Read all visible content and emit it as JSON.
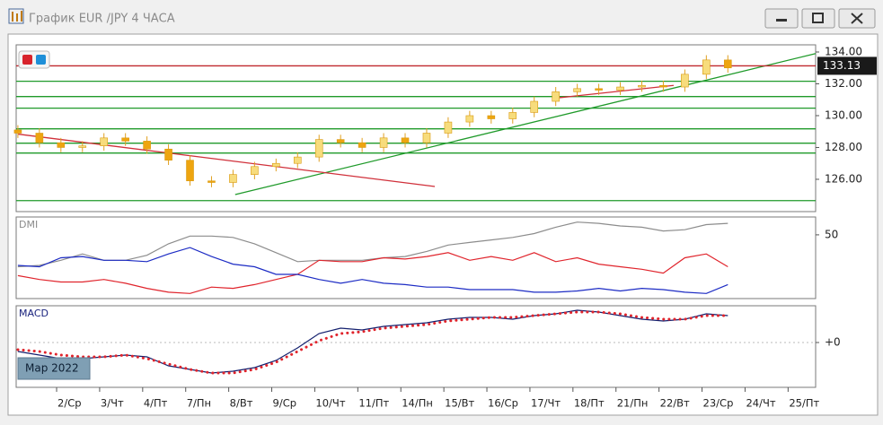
{
  "window": {
    "title": "График EUR /JPY  4 ЧАСА"
  },
  "chart_data": [
    {
      "type": "candlestick",
      "x": [
        -0.9,
        -0.4,
        0.1,
        0.6,
        1.1,
        1.6,
        2.1,
        2.6,
        3.1,
        3.6,
        4.1,
        4.6,
        5.1,
        5.6,
        6.1,
        6.6,
        7.1,
        7.6,
        8.1,
        8.6,
        9.1,
        9.6,
        10.1,
        10.6,
        11.1,
        11.6,
        12.1,
        12.6,
        13.1,
        13.6,
        14.1,
        14.6,
        15.1,
        15.6
      ],
      "open": [
        129.1,
        128.9,
        128.3,
        128.0,
        128.1,
        128.6,
        128.4,
        127.9,
        127.2,
        125.9,
        125.8,
        126.3,
        126.8,
        127.0,
        127.4,
        128.5,
        128.3,
        128.0,
        128.6,
        128.3,
        128.9,
        129.6,
        130.0,
        129.8,
        130.2,
        130.9,
        131.5,
        131.7,
        131.6,
        131.8,
        131.9,
        131.8,
        132.6,
        133.5
      ],
      "high": [
        129.4,
        129.2,
        128.6,
        128.4,
        128.9,
        128.9,
        128.7,
        128.2,
        127.5,
        126.2,
        126.6,
        127.1,
        127.3,
        127.7,
        128.8,
        128.8,
        128.6,
        128.9,
        128.9,
        129.2,
        129.9,
        130.3,
        130.3,
        130.5,
        131.2,
        131.8,
        132.0,
        132.0,
        132.1,
        132.2,
        132.2,
        132.9,
        133.8,
        133.8
      ],
      "low": [
        128.6,
        128.0,
        127.7,
        127.7,
        127.8,
        128.1,
        127.6,
        126.9,
        125.6,
        125.5,
        125.5,
        126.0,
        126.5,
        126.7,
        127.1,
        128.0,
        127.7,
        127.7,
        128.0,
        128.0,
        128.6,
        129.3,
        129.5,
        129.5,
        129.9,
        130.6,
        131.2,
        131.3,
        131.3,
        131.5,
        131.5,
        131.5,
        132.3,
        132.7
      ],
      "close": [
        128.9,
        128.3,
        128.0,
        128.1,
        128.6,
        128.4,
        127.9,
        127.2,
        125.9,
        125.8,
        126.3,
        126.8,
        127.0,
        127.4,
        128.5,
        128.3,
        128.0,
        128.6,
        128.3,
        128.9,
        129.6,
        130.0,
        129.8,
        130.2,
        130.9,
        131.5,
        131.7,
        131.6,
        131.8,
        131.9,
        131.8,
        132.6,
        133.5,
        133.0
      ],
      "up_color": "#f7dc7c",
      "down_color": "#eea510",
      "xlim": [
        -0.94,
        17.64
      ],
      "ylim": [
        123.97,
        134.45
      ],
      "yticks": [
        {
          "value": 126,
          "label": "126.00"
        },
        {
          "value": 128,
          "label": "128.00"
        },
        {
          "value": 130,
          "label": "130.00"
        },
        {
          "value": 132,
          "label": "132.00"
        },
        {
          "value": 134,
          "label": "134.00"
        }
      ],
      "current_price": {
        "value": 133.13,
        "label": "133.13"
      },
      "price_line_color": "#c0282e",
      "levels": [
        132.16,
        131.2,
        130.47,
        129.17,
        128.27,
        127.65,
        124.66
      ],
      "level_color": "#1f9a2a",
      "trendlines": [
        {
          "color": "#1f9a2a",
          "x": [
            4.15,
            17.64
          ],
          "y": [
            125.04,
            133.9
          ]
        },
        {
          "color": "#d0303a",
          "x": [
            -0.9,
            8.79
          ],
          "y": [
            128.84,
            125.55
          ]
        },
        {
          "color": "#d0303a",
          "x": [
            11.59,
            14.34
          ],
          "y": [
            131.1,
            131.9
          ]
        }
      ]
    },
    {
      "type": "line",
      "title": "DMI",
      "x": [
        -0.9,
        -0.4,
        0.1,
        0.6,
        1.1,
        1.6,
        2.1,
        2.6,
        3.1,
        3.6,
        4.1,
        4.6,
        5.1,
        5.6,
        6.1,
        6.6,
        7.1,
        7.6,
        8.1,
        8.6,
        9.1,
        9.6,
        10.1,
        10.6,
        11.1,
        11.6,
        12.1,
        12.6,
        13.1,
        13.6,
        14.1,
        14.6,
        15.1,
        15.6
      ],
      "xlim": [
        -0.94,
        17.64
      ],
      "ylim": [
        0,
        64
      ],
      "yticks": [
        50
      ],
      "series": [
        {
          "color": "#8c8c8c",
          "values": [
            25,
            26,
            30,
            35,
            30,
            30,
            34,
            43,
            49,
            49,
            48,
            43,
            36,
            29,
            30,
            30,
            30,
            32,
            33,
            37,
            42,
            44,
            46,
            48,
            51,
            56,
            60,
            59,
            57,
            56,
            53,
            54,
            58,
            59
          ]
        },
        {
          "color": "#e0242c",
          "values": [
            18,
            15,
            13,
            13,
            15,
            12,
            8,
            5,
            4,
            9,
            8,
            11,
            15,
            19,
            30,
            29,
            29,
            32,
            31,
            33,
            36,
            30,
            33,
            30,
            36,
            29,
            32,
            27,
            25,
            23,
            20,
            32,
            35,
            25
          ]
        },
        {
          "color": "#1c2bc4",
          "values": [
            26,
            25,
            32,
            33,
            30,
            30,
            29,
            35,
            40,
            33,
            27,
            25,
            19,
            19,
            15,
            12,
            15,
            12,
            11,
            9,
            9,
            7,
            7,
            7,
            5,
            5,
            6,
            8,
            6,
            8,
            7,
            5,
            4,
            11
          ]
        }
      ]
    },
    {
      "type": "line",
      "title": "MACD",
      "x": [
        -0.9,
        -0.4,
        0.1,
        0.6,
        1.1,
        1.6,
        2.1,
        2.6,
        3.1,
        3.6,
        4.1,
        4.6,
        5.1,
        5.6,
        6.1,
        6.6,
        7.1,
        7.6,
        8.1,
        8.6,
        9.1,
        9.6,
        10.1,
        10.6,
        11.1,
        11.6,
        12.1,
        12.6,
        13.1,
        13.6,
        14.1,
        14.6,
        15.1,
        15.6
      ],
      "xlim": [
        -0.94,
        17.64
      ],
      "ylim": [
        -1.25,
        1.025
      ],
      "yticks": [
        {
          "value": 0,
          "label": "+0"
        }
      ],
      "xticks": [
        {
          "value": 0,
          "label": "2/Ср"
        },
        {
          "value": 1,
          "label": "3/Чт"
        },
        {
          "value": 2,
          "label": "4/Пт"
        },
        {
          "value": 3,
          "label": "7/Пн"
        },
        {
          "value": 4,
          "label": "8/Вт"
        },
        {
          "value": 5,
          "label": "9/Ср"
        },
        {
          "value": 6,
          "label": "10/Чт"
        },
        {
          "value": 7,
          "label": "11/Пт"
        },
        {
          "value": 8,
          "label": "14/Пн"
        },
        {
          "value": 9,
          "label": "15/Вт"
        },
        {
          "value": 10,
          "label": "16/Ср"
        },
        {
          "value": 11,
          "label": "17/Чт"
        },
        {
          "value": 12,
          "label": "18/Пт"
        },
        {
          "value": 13,
          "label": "21/Пн"
        },
        {
          "value": 14,
          "label": "22/Вт"
        },
        {
          "value": 15,
          "label": "23/Ср"
        },
        {
          "value": 16,
          "label": "24/Чт"
        },
        {
          "value": 17,
          "label": "25/Пт"
        }
      ],
      "date_label": "Мар 2022",
      "series": [
        {
          "color": "#14206e",
          "line_style": "solid",
          "values": [
            -0.25,
            -0.35,
            -0.45,
            -0.45,
            -0.4,
            -0.35,
            -0.4,
            -0.65,
            -0.75,
            -0.85,
            -0.8,
            -0.7,
            -0.5,
            -0.15,
            0.25,
            0.4,
            0.35,
            0.45,
            0.5,
            0.55,
            0.65,
            0.7,
            0.7,
            0.65,
            0.75,
            0.8,
            0.9,
            0.85,
            0.75,
            0.65,
            0.6,
            0.65,
            0.8,
            0.75
          ]
        },
        {
          "color": "#e0242c",
          "line_style": "dotted",
          "values": [
            -0.2,
            -0.25,
            -0.35,
            -0.4,
            -0.4,
            -0.35,
            -0.45,
            -0.6,
            -0.75,
            -0.85,
            -0.85,
            -0.75,
            -0.55,
            -0.25,
            0.05,
            0.25,
            0.3,
            0.4,
            0.45,
            0.5,
            0.6,
            0.65,
            0.7,
            0.7,
            0.75,
            0.8,
            0.85,
            0.85,
            0.8,
            0.7,
            0.65,
            0.65,
            0.75,
            0.75
          ]
        }
      ]
    }
  ]
}
